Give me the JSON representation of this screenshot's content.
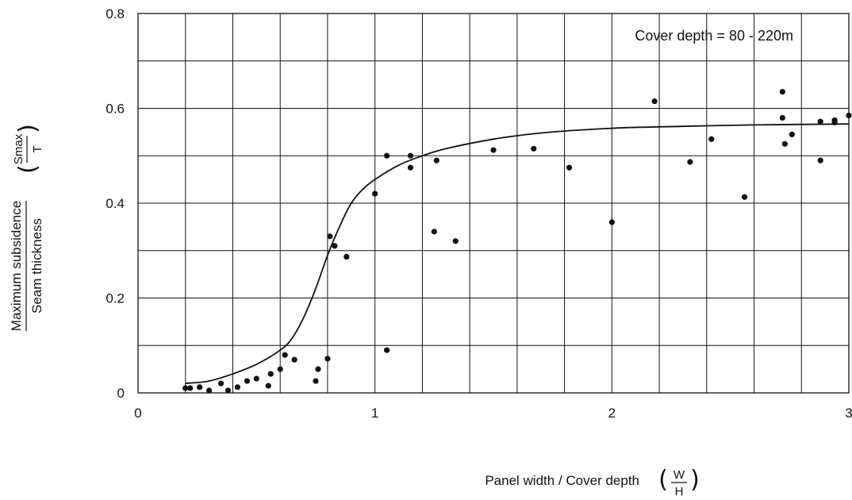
{
  "chart_data": {
    "type": "scatter",
    "title": "",
    "annotation": "Cover depth = 80 - 220m",
    "xlabel": "Panel width / Cover depth",
    "xlabel_fraction": {
      "numerator": "W",
      "denominator": "H"
    },
    "ylabel_numerator": "Maximum subsidence",
    "ylabel_denominator": "Seam thickness",
    "ylabel_fraction": {
      "numerator": "Smax",
      "denominator": "T"
    },
    "xlim": [
      0,
      3
    ],
    "ylim": [
      0,
      0.8
    ],
    "x_ticks": [
      0,
      1,
      2,
      3
    ],
    "x_tick_labels": [
      "0",
      "1",
      "2",
      "3"
    ],
    "y_ticks": [
      0,
      0.2,
      0.4,
      0.6,
      0.8
    ],
    "y_tick_labels": [
      "0",
      "0.2",
      "0.4",
      "0.6",
      "0.8"
    ],
    "grid": true,
    "grid_x_step": 0.2,
    "grid_y_step": 0.1,
    "series": [
      {
        "kind": "points",
        "x": [
          0.2,
          0.22,
          0.26,
          0.3,
          0.35,
          0.38,
          0.42,
          0.46,
          0.5,
          0.55,
          0.56,
          0.6,
          0.62,
          0.66,
          0.75,
          0.76,
          0.8,
          0.81,
          0.83,
          0.88,
          1.0,
          1.05,
          1.05,
          1.15,
          1.15,
          1.25,
          1.26,
          1.34,
          1.5,
          1.67,
          1.82,
          2.0,
          2.18,
          2.33,
          2.42,
          2.56,
          2.72,
          2.72,
          2.73,
          2.76,
          2.88,
          2.88,
          2.94,
          2.94,
          3.0
        ],
        "y": [
          0.01,
          0.01,
          0.012,
          0.005,
          0.02,
          0.005,
          0.012,
          0.025,
          0.03,
          0.015,
          0.04,
          0.05,
          0.08,
          0.07,
          0.025,
          0.05,
          0.072,
          0.33,
          0.31,
          0.287,
          0.42,
          0.09,
          0.5,
          0.5,
          0.475,
          0.34,
          0.49,
          0.32,
          0.512,
          0.515,
          0.475,
          0.36,
          0.615,
          0.487,
          0.535,
          0.413,
          0.635,
          0.58,
          0.525,
          0.545,
          0.49,
          0.572,
          0.575,
          0.57,
          0.585
        ]
      },
      {
        "kind": "curve",
        "x": [
          0.2,
          0.3,
          0.4,
          0.5,
          0.6,
          0.65,
          0.7,
          0.75,
          0.8,
          0.85,
          0.9,
          0.95,
          1.0,
          1.1,
          1.2,
          1.3,
          1.5,
          1.7,
          2.0,
          2.3,
          2.6,
          3.0
        ],
        "y": [
          0.02,
          0.025,
          0.04,
          0.06,
          0.09,
          0.115,
          0.16,
          0.22,
          0.29,
          0.35,
          0.4,
          0.43,
          0.45,
          0.48,
          0.5,
          0.515,
          0.535,
          0.548,
          0.558,
          0.562,
          0.565,
          0.567
        ]
      }
    ]
  }
}
